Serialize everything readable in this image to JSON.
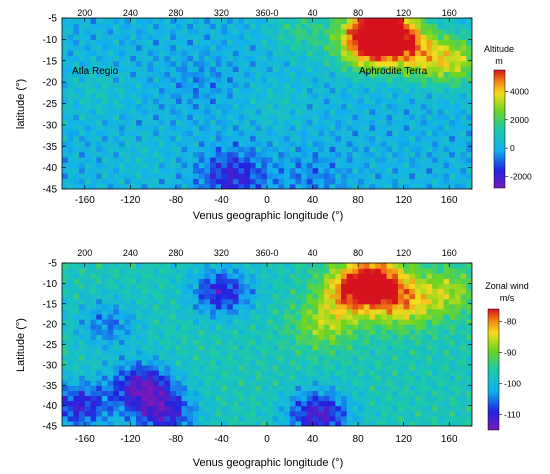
{
  "chart_data": [
    {
      "type": "heatmap",
      "xlabel": "Venus geographic longitude (°)",
      "ylabel": "latitude (°)",
      "xlim": [
        -180,
        180
      ],
      "ylim": [
        -45,
        -5
      ],
      "x_ticks": [
        "-160",
        "-120",
        "-80",
        "-40",
        "0",
        "40",
        "80",
        "120",
        "160"
      ],
      "x_tick_values": [
        -160,
        -120,
        -80,
        -40,
        0,
        40,
        80,
        120,
        160
      ],
      "top_ticks": [
        "200",
        "240",
        "280",
        "320",
        "360-0",
        "40",
        "80",
        "120",
        "160"
      ],
      "y_ticks": [
        "-5",
        "-10",
        "-15",
        "-20",
        "-25",
        "-30",
        "-35",
        "-40",
        "-45"
      ],
      "y_tick_values": [
        -5,
        -10,
        -15,
        -20,
        -25,
        -30,
        -35,
        -40,
        -45
      ],
      "colorbar": {
        "title": "Altitude",
        "unit": "m",
        "ticks": [
          "4000",
          "2000",
          "0",
          "-2000"
        ],
        "tick_values": [
          4000,
          2000,
          0,
          -2000
        ],
        "range": [
          -2800,
          5500
        ]
      },
      "annotations": [
        {
          "text": "Atla Regio",
          "lon": -173,
          "lat": -13.5
        },
        {
          "text": "Aphrodite Terra",
          "lon": 80,
          "lat": -13.5
        }
      ],
      "features": [
        {
          "lon": 97,
          "lat": -7,
          "value": 5000
        },
        {
          "lon": 112,
          "lat": -10,
          "value": 3500
        },
        {
          "lon": 85,
          "lat": -12,
          "value": 3000
        },
        {
          "lon": 140,
          "lat": -14,
          "value": 2500
        },
        {
          "lon": 170,
          "lat": -15,
          "value": 2500
        },
        {
          "lon": 30,
          "lat": -8,
          "value": 1500
        },
        {
          "lon": -150,
          "lat": -22,
          "value": 800
        },
        {
          "lon": -110,
          "lat": -38,
          "value": 500
        },
        {
          "lon": 10,
          "lat": -25,
          "value": 700
        },
        {
          "lon": -30,
          "lat": -42,
          "value": -1800
        },
        {
          "lon": -60,
          "lat": -20,
          "value": -400
        },
        {
          "lon": 40,
          "lat": -42,
          "value": -600
        }
      ],
      "base_value": 100
    },
    {
      "type": "heatmap",
      "xlabel": "Venus geographic longitude (°)",
      "ylabel": "Latitude (°)",
      "xlim": [
        -180,
        180
      ],
      "ylim": [
        -45,
        -5
      ],
      "x_ticks": [
        "-160",
        "-120",
        "-80",
        "-40",
        "0",
        "40",
        "80",
        "120",
        "160"
      ],
      "x_tick_values": [
        -160,
        -120,
        -80,
        -40,
        0,
        40,
        80,
        120,
        160
      ],
      "top_ticks": [
        "200",
        "240",
        "280",
        "320",
        "360-0",
        "40",
        "80",
        "120",
        "160"
      ],
      "y_ticks": [
        "-5",
        "-10",
        "-15",
        "-20",
        "-25",
        "-30",
        "-35",
        "-40",
        "-45"
      ],
      "y_tick_values": [
        -5,
        -10,
        -15,
        -20,
        -25,
        -30,
        -35,
        -40,
        -45
      ],
      "colorbar": {
        "title": "Zonal wind",
        "unit": "m/s",
        "ticks": [
          "-80",
          "-90",
          "-100",
          "-110"
        ],
        "tick_values": [
          -80,
          -90,
          -100,
          -110
        ],
        "range": [
          -115,
          -76
        ]
      },
      "features": [
        {
          "lon": 95,
          "lat": -9,
          "value": -78
        },
        {
          "lon": 75,
          "lat": -12,
          "value": -82
        },
        {
          "lon": 120,
          "lat": -15,
          "value": -85
        },
        {
          "lon": 160,
          "lat": -12,
          "value": -88
        },
        {
          "lon": 50,
          "lat": -20,
          "value": -88
        },
        {
          "lon": -165,
          "lat": -40,
          "value": -110
        },
        {
          "lon": -110,
          "lat": -35,
          "value": -112
        },
        {
          "lon": -90,
          "lat": -42,
          "value": -110
        },
        {
          "lon": -40,
          "lat": -12,
          "value": -110
        },
        {
          "lon": 45,
          "lat": -42,
          "value": -112
        },
        {
          "lon": -140,
          "lat": -20,
          "value": -105
        }
      ],
      "base_value": -97
    }
  ]
}
